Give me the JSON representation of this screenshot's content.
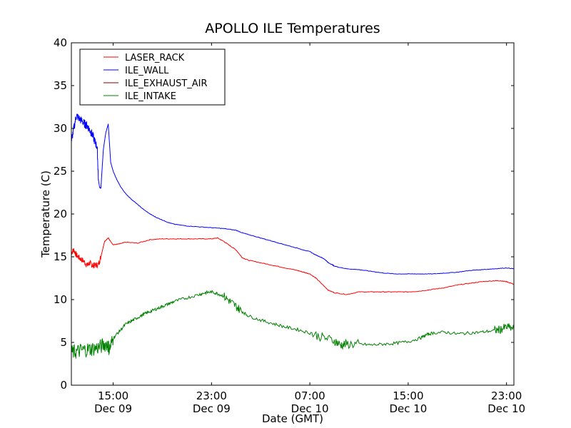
{
  "chart_data": {
    "type": "line",
    "title": "APOLLO ILE Temperatures",
    "xlabel": "Date (GMT)",
    "ylabel": "Temperature (C)",
    "ylim": [
      0,
      40
    ],
    "yticks": [
      0,
      5,
      10,
      15,
      20,
      25,
      30,
      35,
      40
    ],
    "xlim_hours": [
      11.6,
      47.6
    ],
    "xticks": [
      {
        "hour": 15,
        "time": "15:00",
        "date": "Dec 09"
      },
      {
        "hour": 23,
        "time": "23:00",
        "date": "Dec 09"
      },
      {
        "hour": 31,
        "time": "07:00",
        "date": "Dec 10"
      },
      {
        "hour": 39,
        "time": "15:00",
        "date": "Dec 10"
      },
      {
        "hour": 47,
        "time": "23:00",
        "date": "Dec 10"
      }
    ],
    "legend_position": "top-left",
    "grid": false,
    "series": [
      {
        "name": "LASER_RACK",
        "color": "#ff0000",
        "x": [
          11.6,
          11.8,
          12.0,
          12.3,
          12.6,
          12.9,
          13.1,
          13.3,
          13.5,
          13.8,
          14.0,
          14.3,
          14.6,
          15.0,
          15.5,
          16.0,
          17.0,
          18.0,
          19.0,
          20.0,
          21.0,
          22.0,
          23.0,
          23.5,
          24.0,
          24.5,
          25.0,
          25.5,
          26.0,
          27.0,
          28.0,
          29.0,
          30.0,
          30.5,
          31.0,
          31.5,
          32.0,
          32.5,
          33.0,
          34.0,
          35.0,
          36.0,
          37.0,
          38.0,
          39.0,
          40.0,
          41.0,
          42.0,
          43.0,
          44.0,
          45.0,
          46.0,
          46.5,
          47.0,
          47.6
        ],
        "y": [
          15.5,
          15.8,
          15.2,
          14.8,
          14.5,
          14.0,
          14.3,
          14.0,
          14.0,
          14.1,
          15.0,
          16.8,
          17.2,
          16.4,
          16.5,
          16.7,
          16.6,
          17.0,
          17.1,
          17.1,
          17.1,
          17.1,
          17.1,
          17.2,
          16.8,
          16.3,
          15.8,
          14.9,
          14.6,
          14.3,
          14.0,
          13.7,
          13.4,
          13.2,
          13.0,
          12.5,
          11.8,
          11.1,
          10.8,
          10.6,
          10.9,
          10.9,
          10.9,
          10.9,
          10.9,
          11.0,
          11.2,
          11.4,
          11.7,
          11.9,
          12.1,
          12.2,
          12.2,
          12.1,
          11.8
        ]
      },
      {
        "name": "ILE_WALL",
        "color": "#0000ff",
        "x": [
          11.6,
          11.8,
          12.0,
          12.2,
          12.5,
          12.7,
          12.9,
          13.1,
          13.3,
          13.5,
          13.7,
          13.8,
          13.9,
          14.0,
          14.2,
          14.4,
          14.6,
          14.8,
          15.0,
          15.3,
          15.6,
          16.0,
          16.5,
          17.0,
          17.5,
          18.0,
          18.5,
          19.0,
          19.5,
          20.0,
          21.0,
          22.0,
          23.0,
          24.0,
          25.0,
          25.5,
          26.0,
          27.0,
          28.0,
          29.0,
          30.0,
          31.0,
          31.5,
          32.0,
          32.3,
          32.5,
          32.8,
          33.0,
          34.0,
          35.0,
          36.0,
          37.0,
          38.0,
          39.0,
          40.0,
          41.0,
          42.0,
          43.0,
          44.0,
          45.0,
          46.0,
          47.0,
          47.6
        ],
        "y": [
          28.5,
          30.0,
          31.5,
          31.2,
          30.8,
          30.5,
          30.3,
          29.8,
          29.3,
          28.5,
          27.8,
          24.0,
          23.1,
          23.0,
          27.5,
          29.5,
          30.5,
          26.0,
          25.0,
          24.0,
          23.2,
          22.4,
          21.7,
          21.1,
          20.5,
          20.0,
          19.6,
          19.3,
          19.0,
          18.8,
          18.6,
          18.5,
          18.4,
          18.3,
          18.1,
          17.8,
          17.6,
          17.2,
          16.8,
          16.4,
          16.0,
          15.6,
          15.2,
          14.9,
          14.6,
          14.3,
          14.1,
          13.9,
          13.6,
          13.5,
          13.3,
          13.1,
          13.0,
          13.0,
          13.0,
          13.0,
          13.1,
          13.2,
          13.4,
          13.5,
          13.6,
          13.7,
          13.6
        ]
      },
      {
        "name": "ILE_EXHAUST_AIR",
        "color": "#7f0000",
        "x": [],
        "y": []
      },
      {
        "name": "ILE_INTAKE",
        "color": "#008000",
        "x": [
          11.6,
          12.0,
          12.5,
          13.0,
          13.5,
          14.0,
          14.5,
          14.7,
          15.0,
          15.5,
          16.0,
          16.5,
          17.0,
          17.5,
          18.0,
          18.5,
          19.0,
          19.5,
          20.0,
          21.0,
          22.0,
          22.5,
          23.0,
          23.5,
          24.0,
          24.5,
          25.0,
          25.5,
          26.0,
          27.0,
          28.0,
          29.0,
          30.0,
          31.0,
          32.0,
          33.0,
          33.5,
          34.0,
          35.0,
          36.0,
          37.0,
          38.0,
          39.0,
          40.0,
          40.5,
          41.0,
          42.0,
          43.0,
          44.0,
          45.0,
          46.0,
          46.5,
          47.0,
          47.6
        ],
        "y": [
          3.8,
          3.9,
          4.1,
          4.2,
          4.3,
          4.5,
          4.9,
          4.2,
          5.5,
          6.3,
          7.1,
          7.5,
          7.9,
          8.3,
          8.6,
          8.9,
          9.2,
          9.5,
          9.8,
          10.2,
          10.6,
          10.8,
          10.9,
          10.7,
          10.4,
          9.8,
          9.2,
          8.6,
          8.1,
          7.6,
          7.2,
          6.8,
          6.5,
          6.1,
          5.6,
          5.2,
          4.7,
          4.8,
          4.8,
          4.7,
          4.8,
          4.9,
          5.1,
          5.5,
          5.9,
          6.1,
          6.2,
          6.0,
          6.1,
          6.2,
          6.4,
          6.5,
          6.8,
          6.6
        ]
      }
    ]
  }
}
